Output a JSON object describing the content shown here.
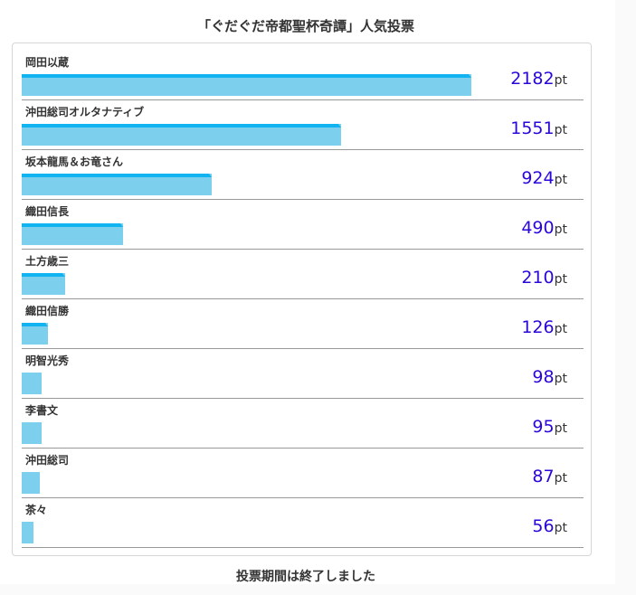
{
  "poll": {
    "title": "「ぐだぐだ帝都聖杯奇譚」人気投票",
    "status": "投票期間は終了しました",
    "unit": "pt",
    "max": 2182,
    "bar_color": "#7cd0ee",
    "cap_color": "#11b4f0",
    "score_color": "#2a06d9",
    "items": [
      {
        "name": "岡田以蔵",
        "points": 2182,
        "capped": true
      },
      {
        "name": "沖田総司オルタナティブ",
        "points": 1551,
        "capped": true
      },
      {
        "name": "坂本龍馬＆お竜さん",
        "points": 924,
        "capped": true
      },
      {
        "name": "織田信長",
        "points": 490,
        "capped": true
      },
      {
        "name": "土方歳三",
        "points": 210,
        "capped": true
      },
      {
        "name": "織田信勝",
        "points": 126,
        "capped": true
      },
      {
        "name": "明智光秀",
        "points": 98,
        "capped": false
      },
      {
        "name": "李書文",
        "points": 95,
        "capped": false
      },
      {
        "name": "沖田総司",
        "points": 87,
        "capped": false
      },
      {
        "name": "茶々",
        "points": 56,
        "capped": false
      }
    ]
  }
}
